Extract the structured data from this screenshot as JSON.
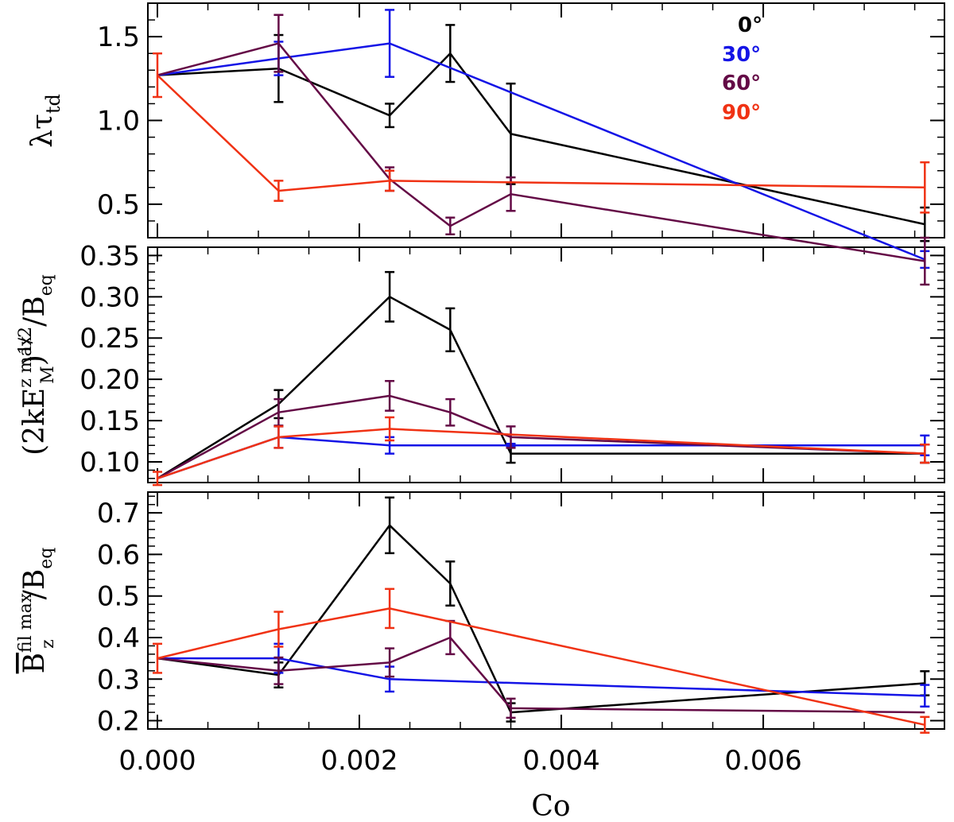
{
  "figure": {
    "xlabel": "Co",
    "xlim": [
      0.0,
      0.0077
    ],
    "xticks": [
      "0.000",
      "0.002",
      "0.004",
      "0.006"
    ],
    "xtick_values": [
      0.0,
      0.002,
      0.004,
      0.006
    ]
  },
  "legend": {
    "entries": [
      {
        "label": "0°",
        "color": "#000000"
      },
      {
        "label": "30°",
        "color": "#1414e6"
      },
      {
        "label": "60°",
        "color": "#640a46"
      },
      {
        "label": "90°",
        "color": "#f03214"
      }
    ]
  },
  "chart_data": [
    {
      "type": "line",
      "panel": "top",
      "ylabel_parts": {
        "main": "λτ",
        "sub": "td"
      },
      "ylim": [
        0.3,
        1.7
      ],
      "yticks": [
        "0.5",
        "1.0",
        "1.5"
      ],
      "ytick_values": [
        0.5,
        1.0,
        1.5
      ],
      "x": [
        0.0,
        0.0012,
        0.0023,
        0.0029,
        0.0035,
        0.0076
      ],
      "series": [
        {
          "name": "0°",
          "color": "#000000",
          "points": [
            [
              0.0,
              1.27,
              0
            ],
            [
              0.0012,
              1.31,
              0.2
            ],
            [
              0.0023,
              1.03,
              0.07
            ],
            [
              0.0029,
              1.4,
              0.17
            ],
            [
              0.0035,
              0.92,
              0.3
            ],
            [
              0.0076,
              0.38,
              0.1
            ]
          ]
        },
        {
          "name": "30°",
          "color": "#1414e6",
          "points": [
            [
              0.0,
              1.27,
              0
            ],
            [
              0.0012,
              1.37,
              0.1
            ],
            [
              0.0023,
              1.46,
              0.2
            ],
            [
              0.0076,
              0.17,
              0.05
            ]
          ]
        },
        {
          "name": "60°",
          "color": "#640a46",
          "points": [
            [
              0.0,
              1.27,
              0
            ],
            [
              0.0012,
              1.46,
              0.17
            ],
            [
              0.0023,
              0.65,
              0.07
            ],
            [
              0.0029,
              0.37,
              0.05
            ],
            [
              0.0035,
              0.56,
              0.1
            ],
            [
              0.0076,
              0.16,
              0.14
            ]
          ]
        },
        {
          "name": "90°",
          "color": "#f03214",
          "points": [
            [
              0.0,
              1.27,
              0.13
            ],
            [
              0.0012,
              0.58,
              0.06
            ],
            [
              0.0023,
              0.64,
              0.06
            ],
            [
              0.0076,
              0.6,
              0.15
            ]
          ]
        }
      ]
    },
    {
      "type": "line",
      "panel": "middle",
      "ylabel_parts": {
        "lp": "(2kE",
        "sup1": "z max",
        "sub1": "M",
        "rp": ")",
        "sup2": "1/2",
        "tail": "/B",
        "sub2": "eq"
      },
      "ylim": [
        0.075,
        0.36
      ],
      "yticks": [
        "0.10",
        "0.15",
        "0.20",
        "0.25",
        "0.30",
        "0.35"
      ],
      "ytick_values": [
        0.1,
        0.15,
        0.2,
        0.25,
        0.3,
        0.35
      ],
      "x": [
        0.0,
        0.0012,
        0.0023,
        0.0029,
        0.0035,
        0.0076
      ],
      "series": [
        {
          "name": "0°",
          "color": "#000000",
          "points": [
            [
              0.0,
              0.08,
              0
            ],
            [
              0.0012,
              0.17,
              0.017
            ],
            [
              0.0023,
              0.3,
              0.03
            ],
            [
              0.0029,
              0.26,
              0.026
            ],
            [
              0.0035,
              0.11,
              0.011
            ],
            [
              0.0076,
              0.11,
              0.011
            ]
          ]
        },
        {
          "name": "30°",
          "color": "#1414e6",
          "points": [
            [
              0.0,
              0.08,
              0
            ],
            [
              0.0012,
              0.13,
              0.013
            ],
            [
              0.0023,
              0.12,
              0.01
            ],
            [
              0.0035,
              0.12,
              0.002
            ],
            [
              0.0076,
              0.12,
              0.012
            ]
          ]
        },
        {
          "name": "60°",
          "color": "#640a46",
          "points": [
            [
              0.0,
              0.08,
              0
            ],
            [
              0.0012,
              0.16,
              0.016
            ],
            [
              0.0023,
              0.18,
              0.018
            ],
            [
              0.0029,
              0.16,
              0.016
            ],
            [
              0.0035,
              0.13,
              0.013
            ],
            [
              0.0076,
              0.11,
              0.011
            ]
          ]
        },
        {
          "name": "90°",
          "color": "#f03214",
          "points": [
            [
              0.0,
              0.08,
              0.008
            ],
            [
              0.0012,
              0.13,
              0.013
            ],
            [
              0.0023,
              0.14,
              0.014
            ],
            [
              0.0076,
              0.11,
              0.011
            ]
          ]
        }
      ]
    },
    {
      "type": "line",
      "panel": "bottom",
      "ylabel_parts": {
        "b": "B",
        "sup": "fil max",
        "sub": "z",
        "tail": "/B",
        "sub2": "eq"
      },
      "ylim": [
        0.18,
        0.75
      ],
      "yticks": [
        "0.2",
        "0.3",
        "0.4",
        "0.5",
        "0.6",
        "0.7"
      ],
      "ytick_values": [
        0.2,
        0.3,
        0.4,
        0.5,
        0.6,
        0.7
      ],
      "x": [
        0.0,
        0.0012,
        0.0023,
        0.0029,
        0.0035,
        0.0076
      ],
      "series": [
        {
          "name": "0°",
          "color": "#000000",
          "points": [
            [
              0.0,
              0.35,
              0
            ],
            [
              0.0012,
              0.31,
              0.03
            ],
            [
              0.0023,
              0.67,
              0.067
            ],
            [
              0.0029,
              0.53,
              0.053
            ],
            [
              0.0035,
              0.22,
              0.022
            ],
            [
              0.0076,
              0.29,
              0.029
            ]
          ]
        },
        {
          "name": "30°",
          "color": "#1414e6",
          "points": [
            [
              0.0,
              0.35,
              0
            ],
            [
              0.0012,
              0.35,
              0.035
            ],
            [
              0.0023,
              0.3,
              0.03
            ],
            [
              0.0076,
              0.26,
              0.026
            ]
          ]
        },
        {
          "name": "60°",
          "color": "#640a46",
          "points": [
            [
              0.0,
              0.35,
              0
            ],
            [
              0.0012,
              0.32,
              0.032
            ],
            [
              0.0023,
              0.34,
              0.034
            ],
            [
              0.0029,
              0.4,
              0.04
            ],
            [
              0.0035,
              0.23,
              0.023
            ],
            [
              0.0076,
              0.22,
              0
            ]
          ]
        },
        {
          "name": "90°",
          "color": "#f03214",
          "points": [
            [
              0.0,
              0.35,
              0.035
            ],
            [
              0.0012,
              0.42,
              0.042
            ],
            [
              0.0023,
              0.47,
              0.047
            ],
            [
              0.0076,
              0.19,
              0.019
            ]
          ]
        }
      ]
    }
  ]
}
